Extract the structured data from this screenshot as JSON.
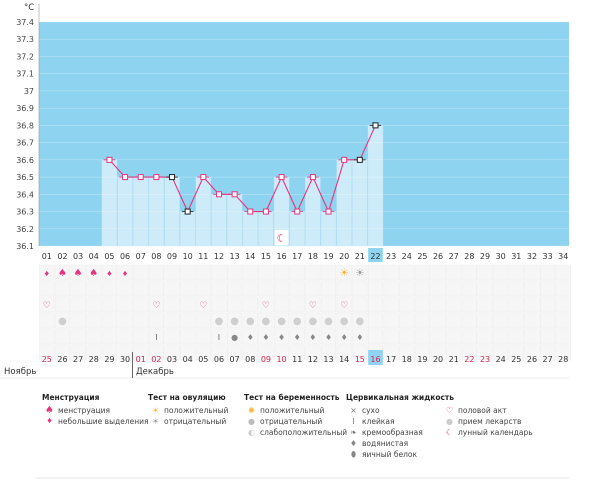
{
  "unit_label": "°C",
  "y_ticks": [
    "37.4",
    "37.3",
    "37.2",
    "37.1",
    "37",
    "36.9",
    "36.8",
    "36.7",
    "36.6",
    "36.5",
    "36.4",
    "36.3",
    "36.2",
    "36.1"
  ],
  "cycle_days": [
    "01",
    "02",
    "03",
    "04",
    "05",
    "06",
    "07",
    "08",
    "09",
    "10",
    "11",
    "12",
    "13",
    "14",
    "15",
    "16",
    "17",
    "18",
    "19",
    "20",
    "21",
    "22",
    "23",
    "24",
    "25",
    "26",
    "27",
    "28",
    "29",
    "30",
    "31",
    "32",
    "33",
    "34"
  ],
  "current_cycle_day_index": 21,
  "calendar_dates": [
    "25",
    "26",
    "27",
    "28",
    "29",
    "30",
    "01",
    "02",
    "03",
    "04",
    "05",
    "06",
    "07",
    "08",
    "09",
    "10",
    "11",
    "12",
    "13",
    "14",
    "15",
    "16",
    "17",
    "18",
    "19",
    "20",
    "21",
    "22",
    "23",
    "24",
    "25",
    "26",
    "27",
    "28"
  ],
  "weekend_date_indexes": [
    0,
    6,
    7,
    14,
    15,
    20,
    21,
    27,
    28
  ],
  "current_date_index": 21,
  "months": {
    "first": "Ноябрь",
    "second": "Декабрь"
  },
  "chart_data": {
    "type": "line",
    "x": [
      "01",
      "02",
      "03",
      "04",
      "05",
      "06",
      "07",
      "08",
      "09",
      "10",
      "11",
      "12",
      "13",
      "14",
      "15",
      "16",
      "17",
      "18",
      "19",
      "20",
      "21",
      "22"
    ],
    "temperatures": [
      null,
      null,
      null,
      null,
      36.6,
      36.5,
      36.5,
      36.5,
      36.5,
      36.3,
      36.5,
      36.4,
      36.4,
      36.3,
      36.3,
      36.5,
      36.3,
      36.5,
      36.3,
      36.6,
      36.6,
      36.8
    ],
    "ylim": [
      36.1,
      37.4
    ],
    "bar_color": "#cdebf9",
    "background_color": "#8ed3f0",
    "line_color": "#e8347e",
    "black_marker_days": [
      "09",
      "10",
      "21",
      "22"
    ],
    "lunar_marker_day": "16"
  },
  "rows": {
    "menstruation": {
      "heavy_days": [
        "02",
        "03",
        "04"
      ],
      "light_days": [
        "01",
        "05",
        "06"
      ]
    },
    "ovulation_test": {
      "positive_days": [
        "20"
      ],
      "negative_days": [
        "21"
      ]
    },
    "intercourse_days": [
      "01",
      "08",
      "11",
      "15",
      "18",
      "20"
    ],
    "medication_days": [
      "02",
      "12",
      "13",
      "14",
      "15",
      "16",
      "17",
      "18",
      "19",
      "20",
      "21"
    ],
    "fluid": {
      "sticky_days": [
        "08",
        "12"
      ],
      "creamy_days": [
        "14",
        "15",
        "16",
        "17",
        "18",
        "19",
        "20",
        "21"
      ],
      "egg_white_days": [
        "13"
      ]
    }
  },
  "legend": {
    "menstruation": {
      "title": "Менструация",
      "items": [
        "менструация",
        "небольшие выделения"
      ]
    },
    "ovulation": {
      "title": "Тест на овуляцию",
      "items": [
        "положительный",
        "отрицательный"
      ]
    },
    "pregnancy": {
      "title": "Тест на беременность",
      "items": [
        "положительный",
        "отрицательный",
        "слабоположительный"
      ]
    },
    "cervical": {
      "title": "Цервикальная жидкость",
      "items": [
        "сухо",
        "клейкая",
        "кремообразная",
        "водянистая",
        "яичный белок"
      ]
    },
    "other": {
      "items": [
        "половой акт",
        "прием лекарств",
        "лунный календарь"
      ]
    }
  },
  "colors": {
    "pink": "#e8347e",
    "red_date": "#d9254c",
    "blue_highlight": "#8ed3f0",
    "grid": "#e6e6e6"
  }
}
